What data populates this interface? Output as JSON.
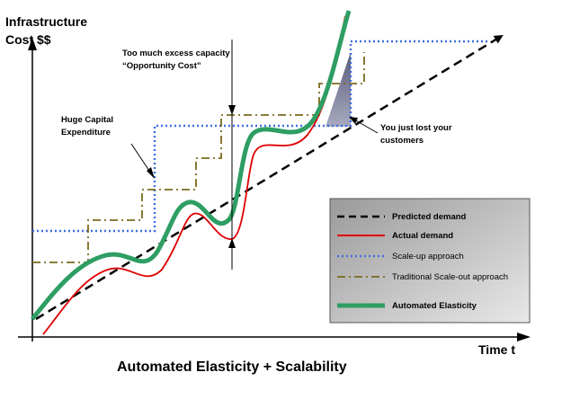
{
  "labels": {
    "y_axis_line1": "Infrastructure",
    "y_axis_line2": "Cost $$",
    "x_axis": "Time t",
    "caption": "Automated Elasticity + Scalability"
  },
  "annotations": {
    "excess_line1": "Too much excess capacity",
    "excess_line2": "“Opportunity Cost”",
    "capex_line1": "Huge Capital",
    "capex_line2": "Expenditure",
    "lost_line1": "You just lost your",
    "lost_line2": "customers"
  },
  "legend": [
    {
      "label": "Predicted demand",
      "bold": true,
      "color": "#000000"
    },
    {
      "label": "Actual demand",
      "bold": true,
      "color": "#e00000"
    },
    {
      "label": "Scale-up approach",
      "bold": false,
      "color": "#3f6fe0"
    },
    {
      "label": "Traditional Scale-out approach",
      "bold": false,
      "color": "#7a6a1e"
    },
    {
      "label": "Automated Elasticity",
      "bold": true,
      "color": "#2e9e63"
    }
  ],
  "colors": {
    "predicted": "#000000",
    "actual": "#e00000",
    "scale_up": "#3f6fe0",
    "scale_out": "#7a6a1e",
    "elastic": "#2e9e63",
    "legend_bg": "#c8c8c8",
    "lost_area": "#7d7f9a"
  }
}
